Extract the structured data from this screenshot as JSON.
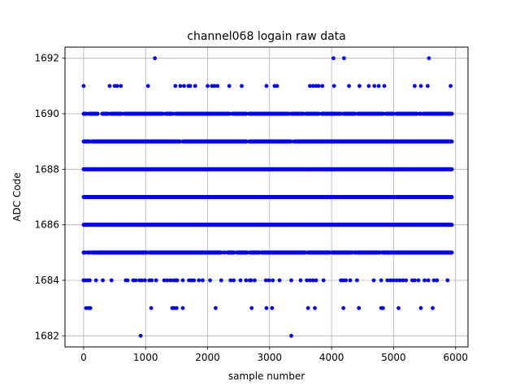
{
  "chart_data": {
    "type": "scatter",
    "title": "channel068 logain raw data",
    "xlabel": "sample number",
    "ylabel": "ADC Code",
    "xlim": [
      -300,
      6200
    ],
    "ylim": [
      1681.6,
      1692.4
    ],
    "x_ticks": [
      0,
      1000,
      2000,
      3000,
      4000,
      5000,
      6000
    ],
    "y_ticks": [
      1682,
      1684,
      1686,
      1688,
      1690,
      1692
    ],
    "x_tick_labels": [
      "0",
      "1000",
      "2000",
      "3000",
      "4000",
      "5000",
      "6000"
    ],
    "y_tick_labels": [
      "1682",
      "1684",
      "1686",
      "1688",
      "1690",
      "1692"
    ],
    "grid": true,
    "marker_color": "#0000ff",
    "dense_levels": [
      {
        "y": 1685,
        "from": 0,
        "to": 5944
      },
      {
        "y": 1686,
        "from": 0,
        "to": 5944
      },
      {
        "y": 1687,
        "from": 0,
        "to": 5944
      },
      {
        "y": 1688,
        "from": 0,
        "to": 5944
      },
      {
        "y": 1689,
        "from": 0,
        "to": 5944
      },
      {
        "y": 1690,
        "from": 0,
        "to": 5944
      }
    ],
    "gaps": [
      {
        "y": 1690,
        "x": [
          60,
          250,
          280,
          420,
          640,
          1300,
          1460,
          2380,
          2650,
          3330,
          3570,
          3820,
          4170,
          4400,
          4850,
          5020,
          5400,
          5460
        ]
      },
      {
        "y": 1689,
        "x": [
          120,
          1580,
          2650,
          3370
        ]
      },
      {
        "y": 1685,
        "x": [
          40,
          120,
          1050,
          2240,
          2300,
          2450,
          2660,
          2850,
          3600,
          3990,
          4350,
          4800
        ]
      }
    ],
    "sparse_points": [
      {
        "y": 1692,
        "x": [
          1150,
          4030,
          4200,
          5570
        ]
      },
      {
        "y": 1691,
        "x": [
          0,
          420,
          500,
          540,
          600,
          1040,
          1480,
          1560,
          1620,
          1690,
          1720,
          1800,
          2000,
          2070,
          2110,
          2160,
          2350,
          2550,
          2950,
          3080,
          3120,
          3650,
          3700,
          3750,
          3790,
          3850,
          4040,
          4280,
          4450,
          4600,
          4690,
          4760,
          4850,
          5340,
          5440,
          5550,
          5920
        ]
      },
      {
        "y": 1684,
        "x": [
          0,
          40,
          70,
          100,
          200,
          310,
          450,
          680,
          710,
          800,
          840,
          900,
          940,
          990,
          1060,
          1100,
          1170,
          1300,
          1350,
          1400,
          1450,
          1490,
          1510,
          1600,
          1700,
          1740,
          1780,
          1860,
          1920,
          2040,
          2220,
          2370,
          2420,
          2530,
          2620,
          2680,
          2700,
          2760,
          2940,
          2990,
          3050,
          3160,
          3350,
          3500,
          3600,
          3650,
          3700,
          3750,
          3870,
          4150,
          4190,
          4230,
          4300,
          4410,
          4680,
          4800,
          4900,
          4950,
          5000,
          5050,
          5100,
          5150,
          5200,
          5300,
          5340,
          5400,
          5500,
          5560,
          5650,
          5700,
          5870
        ]
      },
      {
        "y": 1683,
        "x": [
          40,
          80,
          110,
          1090,
          1430,
          1460,
          1500,
          1600,
          2130,
          2710,
          2950,
          3040,
          3620,
          3730,
          4190,
          4440,
          4800,
          4830,
          5080,
          5440,
          5630
        ]
      },
      {
        "y": 1682,
        "x": [
          920,
          3350
        ]
      }
    ]
  }
}
